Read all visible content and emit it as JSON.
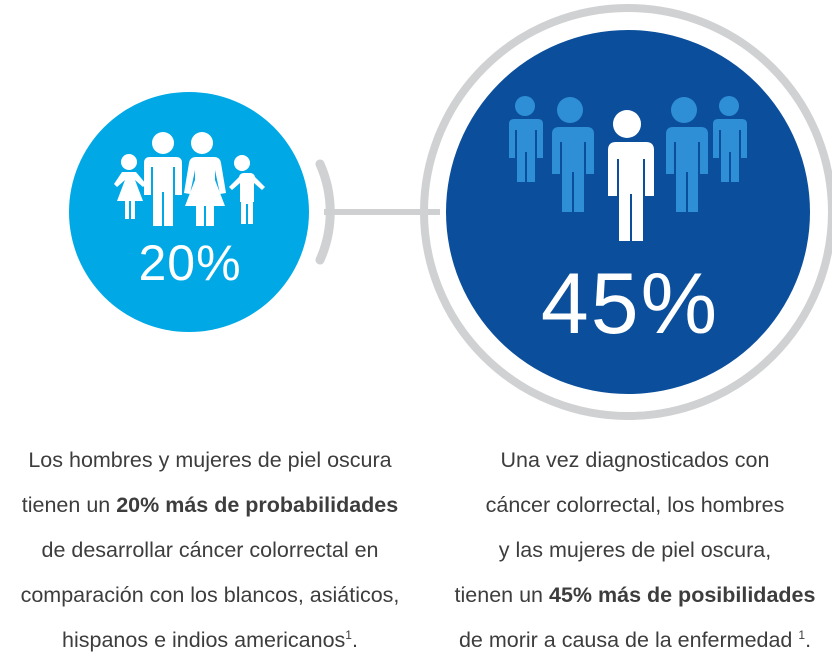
{
  "colors": {
    "left_circle": "#00a9e6",
    "right_circle": "#0b4f9c",
    "ring": "#d0d1d3",
    "connector": "#cfd0d2",
    "figure_white": "#ffffff",
    "figure_faded": "#2f8fd6",
    "text": "#3d3d3d"
  },
  "icons": {
    "left": "family-icon",
    "right": "group-of-people-icon"
  },
  "left_stat": {
    "percent": "20%",
    "caption": {
      "line1": "Los hombres y mujeres de piel oscura",
      "line2_pre": "tienen un ",
      "line2_bold": "20% más de probabilidades",
      "line3": "de desarrollar cáncer colorrectal en",
      "line4": "comparación con los blancos, asiáticos,",
      "line5": "hispanos e indios americanos",
      "line5_sup": "1",
      "line5_post": "."
    }
  },
  "right_stat": {
    "percent": "45%",
    "caption": {
      "line1": "Una vez diagnosticados con",
      "line2": "cáncer colorrectal, los hombres",
      "line3": "y las mujeres de piel oscura,",
      "line4_pre": "tienen un ",
      "line4_bold": "45% más de posibilidades",
      "line5": "de morir a causa de la enfermedad ",
      "line5_sup": "1",
      "line5_post": "."
    }
  }
}
